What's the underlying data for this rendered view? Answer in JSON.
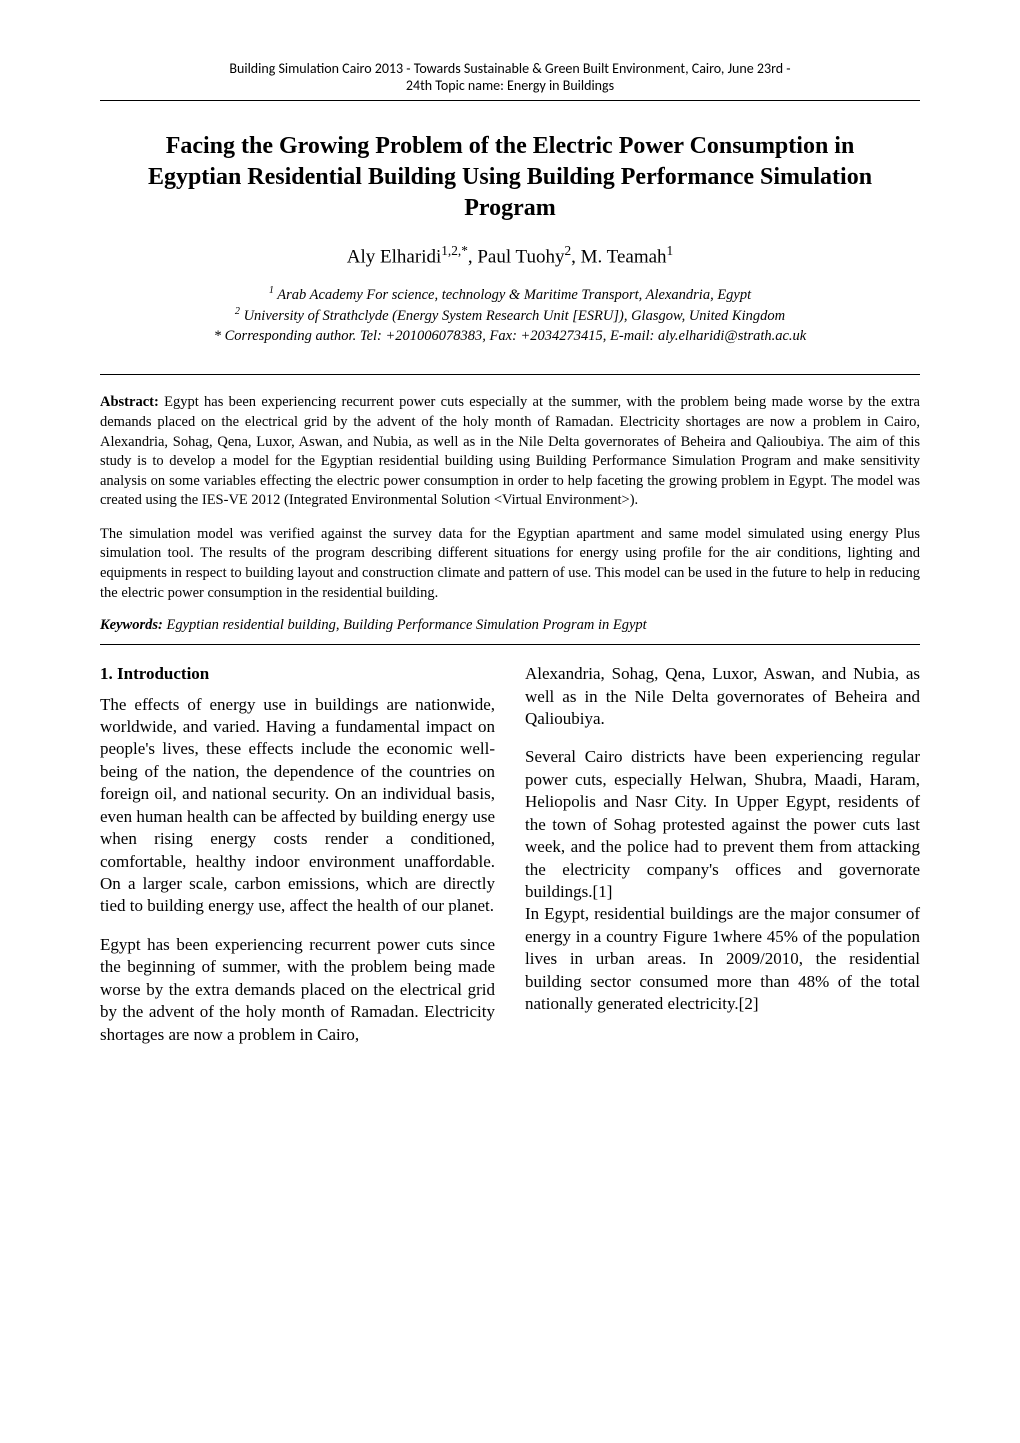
{
  "header": {
    "line1": "Building Simulation Cairo 2013 - Towards Sustainable & Green Built Environment, Cairo, June 23rd -",
    "line2": "24th Topic name: Energy in Buildings"
  },
  "title": "Facing the Growing Problem of the Electric Power Consumption in Egyptian Residential Building Using Building Performance Simulation Program",
  "authors_html": "Aly Elharidi<sup>1,2,*</sup>, Paul Tuohy<sup>2</sup>, M. Teamah<sup>1</sup>",
  "affiliations": {
    "a1": "1 Arab Academy For science, technology & Maritime Transport, Alexandria, Egypt",
    "a2": "2 University of Strathclyde (Energy System Research Unit [ESRU]), Glasgow, United Kingdom",
    "corr": "* Corresponding author. Tel: +201006078383, Fax: +2034273415, E-mail: aly.elharidi@strath.ac.uk"
  },
  "abstract": {
    "label": "Abstract:",
    "p1": " Egypt has been experiencing recurrent power cuts especially at the summer, with the problem being made worse by the extra demands placed on the electrical grid by the advent of the holy month of Ramadan. Electricity shortages are now a problem in Cairo, Alexandria, Sohag, Qena, Luxor, Aswan, and Nubia, as well as in the Nile Delta governorates of Beheira and Qalioubiya. The aim of this study is to develop a model for the Egyptian residential building using Building Performance Simulation Program and make sensitivity analysis on some variables effecting the electric power consumption in order to help faceting the growing problem in Egypt. The model was created using the IES-VE 2012 (Integrated Environmental Solution <Virtual Environment>).",
    "p2": "The simulation model was verified against the survey data for the Egyptian apartment and same model simulated using energy Plus simulation tool. The results of the program describing different situations for energy using profile for the air conditions, lighting and equipments in respect to building layout and construction climate and pattern of use. This model can be used in the future to help in reducing the electric power consumption in the residential building."
  },
  "keywords": {
    "label": "Keywords:",
    "text": " Egyptian residential building, Building Performance Simulation Program in Egypt"
  },
  "section1_heading": "1.  Introduction",
  "col_left": {
    "p1": "The effects of energy use in buildings are nationwide, worldwide, and varied. Having a fundamental impact on people's lives, these effects include the economic well-being of the nation, the dependence of the countries on foreign oil, and national security. On an individual basis, even human health can be affected by building energy use when rising energy costs render a conditioned, comfortable, healthy indoor environment unaffordable. On a larger scale, carbon emissions, which are directly tied to building energy use, affect the health of our planet.",
    "p2": "Egypt has been experiencing recurrent power cuts since the beginning of summer, with the problem being made worse by the extra demands placed on the electrical grid by the advent of the holy month of Ramadan. Electricity shortages are now a problem in Cairo,"
  },
  "col_right": {
    "p1": "Alexandria, Sohag, Qena, Luxor, Aswan, and Nubia, as well as in the Nile Delta governorates of Beheira and Qalioubiya.",
    "p2": "Several Cairo districts have been experiencing regular power cuts, especially Helwan, Shubra, Maadi, Haram, Heliopolis and Nasr City. In Upper Egypt, residents of the town of Sohag protested against the power cuts last week, and the police had to prevent them from attacking the electricity company's offices and governorate buildings.[1]",
    "p3": "In Egypt, residential buildings are the major consumer of energy in a country Figure 1where 45% of the population lives in urban areas. In 2009/2010, the residential building sector consumed more than 48% of the total nationally generated electricity.[2]"
  }
}
